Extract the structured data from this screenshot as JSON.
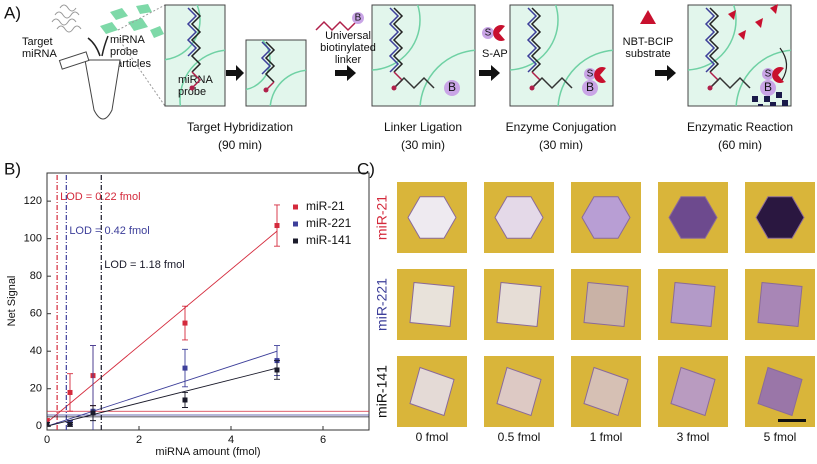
{
  "panel_a": {
    "label": "A)",
    "target_mirna": "Target\nmiRNA",
    "probe_particles": "miRNA\nprobe\nparticles",
    "mirna_probe": "miRNA\nprobe",
    "linker": "Universal\nbiotinylated\nlinker",
    "sap": "S-AP",
    "substrate": "NBT-BCIP\nsubstrate",
    "biotin": "B",
    "streptavidin": "S",
    "steps": [
      {
        "title": "Target Hybridization",
        "time": "(90 min)"
      },
      {
        "title": "Linker Ligation",
        "time": "(30 min)"
      },
      {
        "title": "Enzyme Conjugation",
        "time": "(30 min)"
      },
      {
        "title": "Enzymatic Reaction",
        "time": "(60 min)"
      }
    ]
  },
  "chart_data": {
    "type": "scatter",
    "panel_label": "B)",
    "x_label": "miRNA amount (fmol)",
    "y_label": "Net Signal",
    "x": [
      0,
      0.5,
      1,
      3,
      5
    ],
    "xlim": [
      0,
      7
    ],
    "ylim": [
      -2,
      135
    ],
    "xticks": [
      0,
      2,
      4,
      6
    ],
    "yticks": [
      0,
      20,
      40,
      60,
      80,
      100,
      120
    ],
    "legend": "upper right",
    "series": [
      {
        "name": "miR-21",
        "color": "#d42a3c",
        "values": [
          3,
          18,
          27,
          55,
          107
        ],
        "errors": [
          1,
          10,
          16,
          9,
          11
        ],
        "fit": [
          2,
          104
        ],
        "threshold": 8,
        "lod": 0.22,
        "lod_label": "LOD = 0.22 fmol"
      },
      {
        "name": "miR-221",
        "color": "#3d3f9a",
        "values": [
          1,
          2,
          8,
          31,
          35
        ],
        "errors": [
          1,
          1,
          35,
          10,
          8
        ],
        "fit": [
          0,
          40
        ],
        "threshold": 6,
        "lod": 0.42,
        "lod_label": "LOD = 0.42 fmol"
      },
      {
        "name": "miR-141",
        "color": "#1a1a2a",
        "values": [
          1,
          1,
          7,
          14,
          30
        ],
        "errors": [
          1,
          1,
          4,
          4,
          5
        ],
        "fit": [
          0,
          31
        ],
        "threshold": 5,
        "lod": 1.18,
        "lod_label": "LOD = 1.18 fmol"
      }
    ]
  },
  "panel_c": {
    "label": "C)",
    "rows": [
      "miR-21",
      "miR-221",
      "miR-141"
    ],
    "columns": [
      "0 fmol",
      "0.5 fmol",
      "1 fmol",
      "3 fmol",
      "5 fmol"
    ]
  }
}
